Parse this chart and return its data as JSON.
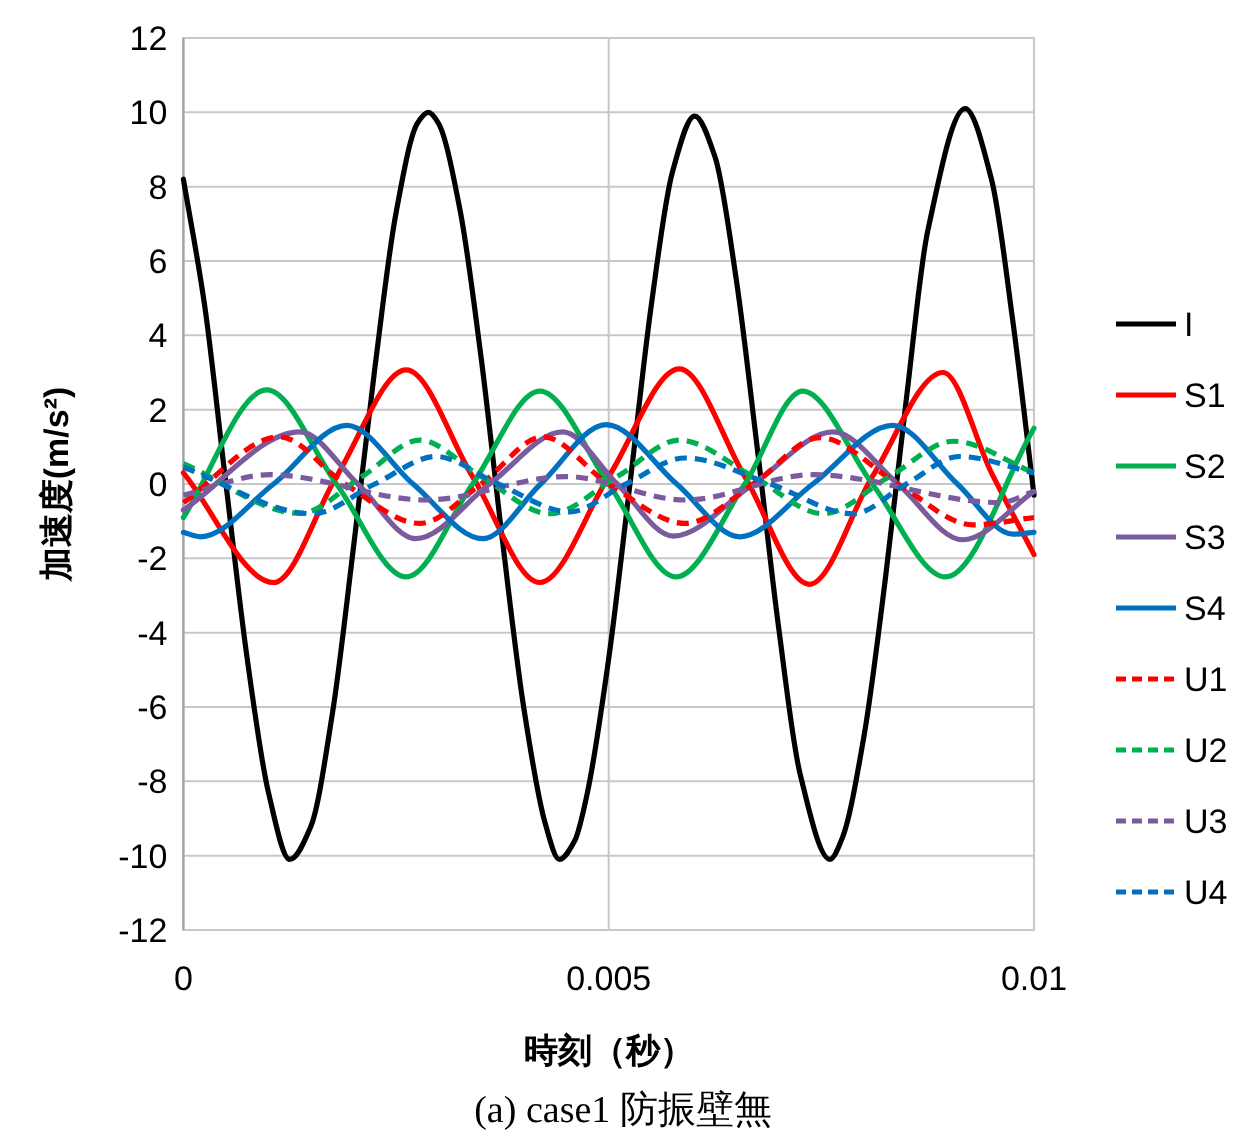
{
  "chart_data": {
    "type": "line",
    "xlabel": "時刻（秒）",
    "ylabel": "加速度(m/s²)",
    "annotations": [
      "(a) case1 防振壁無"
    ],
    "xlim": [
      0,
      0.01
    ],
    "xticks": [
      0,
      0.005,
      0.01
    ],
    "ylim": [
      -12,
      12
    ],
    "yticks": [
      -12,
      -10,
      -8,
      -6,
      -4,
      -2,
      0,
      2,
      4,
      6,
      8,
      10,
      12
    ],
    "grid": true,
    "legend": "right",
    "series": [
      {
        "name": "I",
        "color": "#000000",
        "line_style": "solid",
        "x": [
          0,
          0.00025,
          0.0005,
          0.00075,
          0.001,
          0.00125,
          0.0015,
          0.00175,
          0.002,
          0.00225,
          0.0025,
          0.00275,
          0.00288,
          0.003,
          0.00325,
          0.0035,
          0.00375,
          0.004,
          0.00425,
          0.00442,
          0.0046,
          0.00475,
          0.005,
          0.00525,
          0.0055,
          0.00575,
          0.00601,
          0.00625,
          0.0065,
          0.00675,
          0.007,
          0.00725,
          0.0076,
          0.00775,
          0.008,
          0.00825,
          0.0085,
          0.00875,
          0.00919,
          0.0095,
          0.00975,
          0.01
        ],
        "values": [
          8.2,
          4.8,
          0,
          -4.7,
          -8.3,
          -10.1,
          -9.2,
          -6.2,
          -1.7,
          3.1,
          7.3,
          9.7,
          10,
          9.7,
          7.4,
          3.4,
          -1.5,
          -6,
          -9.1,
          -10.1,
          -9.6,
          -8.3,
          -4.7,
          0,
          4.8,
          8.4,
          9.9,
          8.8,
          5.5,
          0.9,
          -3.9,
          -7.8,
          -10.1,
          -9.5,
          -6.8,
          -2.6,
          2.3,
          6.8,
          10.1,
          8.2,
          4.4,
          -0.3
        ]
      },
      {
        "name": "S1",
        "color": "#ff0000",
        "line_style": "solid",
        "x": [
          0,
          0.00106,
          0.0018,
          0.00262,
          0.0034,
          0.00419,
          0.005,
          0.00583,
          0.0066,
          0.00736,
          0.0081,
          0.00893,
          0.0095,
          0.01
        ],
        "values": [
          0.3,
          -2.65,
          0.2,
          3.07,
          0.2,
          -2.65,
          0.2,
          3.1,
          0.2,
          -2.7,
          0.2,
          3.0,
          0.3,
          -1.9
        ]
      },
      {
        "name": "S2",
        "color": "#00b050",
        "line_style": "solid",
        "x": [
          0,
          0.00098,
          0.0018,
          0.00262,
          0.0034,
          0.00419,
          0.005,
          0.00579,
          0.0066,
          0.00728,
          0.0081,
          0.00896,
          0.01
        ],
        "values": [
          -0.9,
          2.53,
          0,
          -2.5,
          0,
          2.5,
          0,
          -2.5,
          0,
          2.5,
          0,
          -2.5,
          1.5
        ]
      },
      {
        "name": "S3",
        "color": "#7a5c9e",
        "line_style": "solid",
        "x": [
          0,
          0.00137,
          0.00205,
          0.00273,
          0.0036,
          0.00446,
          0.0051,
          0.00576,
          0.0067,
          0.00764,
          0.0084,
          0.00916,
          0.01
        ],
        "values": [
          -0.7,
          1.4,
          0,
          -1.47,
          0,
          1.4,
          0,
          -1.4,
          0,
          1.4,
          0,
          -1.5,
          -0.2
        ]
      },
      {
        "name": "S4",
        "color": "#0070c0",
        "line_style": "solid",
        "x": [
          0,
          0.0002,
          0.00106,
          0.00192,
          0.0027,
          0.00352,
          0.0042,
          0.00497,
          0.0058,
          0.00654,
          0.0074,
          0.00834,
          0.0091,
          0.00975,
          0.01
        ],
        "values": [
          -1.3,
          -1.42,
          0,
          1.58,
          0,
          -1.47,
          0,
          1.6,
          0,
          -1.42,
          0,
          1.58,
          0,
          -1.35,
          -1.3
        ]
      },
      {
        "name": "U1",
        "color": "#ff0000",
        "line_style": "dashed",
        "x": [
          0,
          0.00113,
          0.0019,
          0.00278,
          0.0035,
          0.00423,
          0.005,
          0.0059,
          0.0067,
          0.00748,
          0.0084,
          0.00928,
          0.01
        ],
        "values": [
          -0.5,
          1.27,
          0,
          -1.06,
          0,
          1.27,
          0,
          -1.06,
          0,
          1.25,
          0,
          -1.1,
          -0.9
        ]
      },
      {
        "name": "U2",
        "color": "#00b050",
        "line_style": "dashed",
        "x": [
          0,
          0.00137,
          0.0021,
          0.00278,
          0.0035,
          0.00431,
          0.0051,
          0.00583,
          0.0067,
          0.00752,
          0.0083,
          0.00905,
          0.01
        ],
        "values": [
          0.55,
          -0.79,
          0.2,
          1.18,
          0.2,
          -0.8,
          0.2,
          1.18,
          0.2,
          -0.8,
          0.2,
          1.15,
          0.3
        ]
      },
      {
        "name": "U3",
        "color": "#7a5c9e",
        "line_style": "dashed",
        "x": [
          0,
          0.00102,
          0.00285,
          0.0045,
          0.0059,
          0.0074,
          0.0096,
          0.01
        ],
        "values": [
          -0.3,
          0.25,
          -0.43,
          0.2,
          -0.43,
          0.25,
          -0.5,
          -0.2
        ]
      },
      {
        "name": "U4",
        "color": "#0070c0",
        "line_style": "dashed",
        "x": [
          0,
          0.00152,
          0.00225,
          0.00297,
          0.0037,
          0.00454,
          0.0052,
          0.0059,
          0.0069,
          0.00787,
          0.0085,
          0.00912,
          0.01
        ],
        "values": [
          0.45,
          -0.8,
          0,
          0.74,
          0,
          -0.75,
          0,
          0.7,
          0,
          -0.8,
          0,
          0.74,
          0.3
        ]
      }
    ]
  }
}
